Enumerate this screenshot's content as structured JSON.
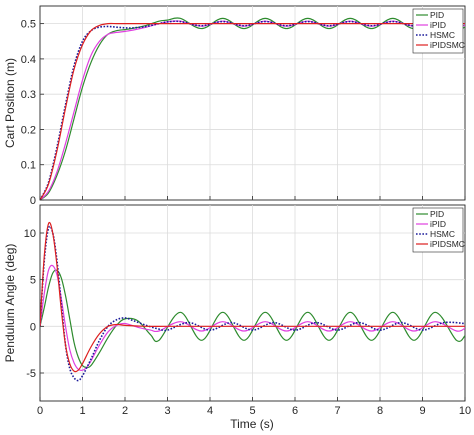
{
  "colors": {
    "PID": "#2e8b2e",
    "iPID": "#e040e0",
    "HSMC": "#1a1a9a",
    "iPIDSMC": "#dd1f1f"
  },
  "xlabel": "Time (s)",
  "chart_data": [
    {
      "type": "line",
      "ylabel": "Cart Position (m)",
      "xlim": [
        0,
        10
      ],
      "ylim": [
        0,
        0.55
      ],
      "xticks": [
        "0",
        "1",
        "2",
        "3",
        "4",
        "5",
        "6",
        "7",
        "8",
        "9",
        "10"
      ],
      "yticks": [
        "0",
        "0.1",
        "0.2",
        "0.3",
        "0.4",
        "0.5"
      ],
      "grid": true,
      "legend": "top-right",
      "series": [
        {
          "name": "PID",
          "style": "solid",
          "x": [
            0,
            0.2,
            0.4,
            0.6,
            0.8,
            1.0,
            1.2,
            1.4,
            1.6,
            1.8,
            2.0,
            2.2,
            2.5,
            2.8,
            3.0,
            3.3,
            3.8,
            4.3,
            4.8,
            5.3,
            5.8,
            6.3,
            6.8,
            7.3,
            7.8,
            8.3,
            8.8,
            9.3,
            9.8,
            10.0
          ],
          "y": [
            0,
            0.02,
            0.07,
            0.14,
            0.23,
            0.32,
            0.39,
            0.44,
            0.47,
            0.48,
            0.483,
            0.487,
            0.495,
            0.507,
            0.51,
            0.515,
            0.486,
            0.515,
            0.486,
            0.515,
            0.486,
            0.515,
            0.486,
            0.515,
            0.486,
            0.515,
            0.486,
            0.515,
            0.486,
            0.49
          ]
        },
        {
          "name": "iPID",
          "style": "solid",
          "x": [
            0,
            0.2,
            0.4,
            0.6,
            0.8,
            1.0,
            1.2,
            1.4,
            1.6,
            1.8,
            2.0,
            2.2,
            2.5,
            2.8,
            3.0,
            3.3,
            3.8,
            4.3,
            4.8,
            5.3,
            5.8,
            6.3,
            6.8,
            7.3,
            7.8,
            8.3,
            8.8,
            9.3,
            9.8,
            10.0
          ],
          "y": [
            0,
            0.025,
            0.08,
            0.16,
            0.25,
            0.34,
            0.41,
            0.45,
            0.47,
            0.475,
            0.478,
            0.482,
            0.49,
            0.5,
            0.505,
            0.507,
            0.493,
            0.507,
            0.493,
            0.507,
            0.493,
            0.507,
            0.493,
            0.507,
            0.493,
            0.507,
            0.493,
            0.507,
            0.493,
            0.495
          ]
        },
        {
          "name": "HSMC",
          "style": "dotted",
          "x": [
            0,
            0.2,
            0.4,
            0.6,
            0.8,
            1.0,
            1.2,
            1.4,
            1.6,
            1.8,
            2.0,
            2.2,
            2.5,
            2.8,
            3.0,
            3.3,
            3.8,
            4.3,
            4.8,
            5.3,
            5.8,
            6.3,
            6.8,
            7.3,
            7.8,
            8.3,
            8.8,
            9.3,
            9.8,
            10.0
          ],
          "y": [
            0,
            0.05,
            0.15,
            0.27,
            0.38,
            0.45,
            0.48,
            0.49,
            0.492,
            0.49,
            0.488,
            0.488,
            0.492,
            0.5,
            0.505,
            0.506,
            0.494,
            0.506,
            0.494,
            0.506,
            0.494,
            0.506,
            0.494,
            0.506,
            0.494,
            0.506,
            0.494,
            0.506,
            0.494,
            0.497
          ]
        },
        {
          "name": "iPIDSMC",
          "style": "solid",
          "x": [
            0,
            0.2,
            0.4,
            0.6,
            0.8,
            1.0,
            1.2,
            1.4,
            1.6,
            1.8,
            2.0,
            2.2,
            2.5,
            2.8,
            3.0,
            3.5,
            4.0,
            5.0,
            6.0,
            7.0,
            8.0,
            9.0,
            10.0
          ],
          "y": [
            0,
            0.045,
            0.14,
            0.26,
            0.37,
            0.44,
            0.48,
            0.495,
            0.5,
            0.5,
            0.5,
            0.5,
            0.5,
            0.5,
            0.5,
            0.5,
            0.5,
            0.5,
            0.5,
            0.5,
            0.5,
            0.5,
            0.5
          ]
        }
      ]
    },
    {
      "type": "line",
      "ylabel": "Pendulum Angle (deg)",
      "xlabel": "Time (s)",
      "xlim": [
        0,
        10
      ],
      "ylim": [
        -8,
        13
      ],
      "xticks": [
        "0",
        "1",
        "2",
        "3",
        "4",
        "5",
        "6",
        "7",
        "8",
        "9",
        "10"
      ],
      "yticks": [
        "-5",
        "0",
        "5",
        "10"
      ],
      "grid": true,
      "legend": "top-right",
      "series": [
        {
          "name": "PID",
          "style": "solid",
          "x": [
            0,
            0.1,
            0.2,
            0.3,
            0.4,
            0.5,
            0.6,
            0.7,
            0.8,
            0.9,
            1.0,
            1.1,
            1.2,
            1.4,
            1.6,
            1.8,
            2.0,
            2.3,
            2.6,
            2.8,
            3.3,
            3.8,
            4.3,
            4.8,
            5.3,
            5.8,
            6.3,
            6.8,
            7.3,
            7.8,
            8.3,
            8.8,
            9.3,
            9.8,
            10.0
          ],
          "y": [
            0,
            2.0,
            4.2,
            5.7,
            6.0,
            5.2,
            3.3,
            0.8,
            -1.7,
            -3.3,
            -4.2,
            -4.4,
            -4.2,
            -2.8,
            -1.2,
            0.1,
            0.8,
            0.6,
            -0.9,
            -1.5,
            1.5,
            -1.5,
            1.5,
            -1.5,
            1.5,
            -1.5,
            1.5,
            -1.5,
            1.5,
            -1.5,
            1.5,
            -1.5,
            1.5,
            -1.5,
            -1.0
          ]
        },
        {
          "name": "iPID",
          "style": "solid",
          "x": [
            0,
            0.1,
            0.2,
            0.3,
            0.4,
            0.5,
            0.6,
            0.7,
            0.8,
            0.9,
            1.0,
            1.1,
            1.2,
            1.4,
            1.6,
            1.8,
            2.0,
            2.3,
            2.6,
            2.8,
            3.3,
            3.8,
            4.3,
            4.8,
            5.3,
            5.8,
            6.3,
            6.8,
            7.3,
            7.8,
            8.3,
            8.8,
            9.3,
            9.8,
            10.0
          ],
          "y": [
            0,
            3.5,
            6.0,
            6.5,
            5.5,
            3.0,
            0.0,
            -2.5,
            -3.9,
            -4.6,
            -4.7,
            -4.4,
            -3.7,
            -2.0,
            -0.6,
            0.1,
            0.3,
            -0.1,
            -0.4,
            -0.5,
            0.5,
            -0.5,
            0.5,
            -0.5,
            0.5,
            -0.5,
            0.5,
            -0.5,
            0.5,
            -0.5,
            0.5,
            -0.5,
            0.5,
            -0.5,
            -0.2
          ]
        },
        {
          "name": "HSMC",
          "style": "dotted",
          "x": [
            0,
            0.1,
            0.2,
            0.3,
            0.4,
            0.5,
            0.6,
            0.7,
            0.8,
            0.9,
            1.0,
            1.2,
            1.4,
            1.6,
            1.8,
            2.0,
            2.2,
            2.5,
            2.8,
            3.0,
            3.5,
            4.0,
            4.5,
            5.0,
            5.5,
            6.0,
            6.5,
            7.0,
            7.5,
            8.0,
            8.5,
            9.0,
            9.5,
            10.0
          ],
          "y": [
            0,
            7.0,
            10.5,
            10.0,
            7.0,
            2.5,
            -2.0,
            -4.5,
            -5.5,
            -5.8,
            -5.3,
            -3.5,
            -1.5,
            0.0,
            0.7,
            0.9,
            0.6,
            0.1,
            -0.3,
            -0.4,
            0.4,
            -0.4,
            0.4,
            -0.4,
            0.4,
            -0.4,
            0.4,
            -0.4,
            0.4,
            -0.4,
            0.4,
            -0.4,
            0.4,
            0.3
          ]
        },
        {
          "name": "iPIDSMC",
          "style": "solid",
          "x": [
            0,
            0.1,
            0.2,
            0.3,
            0.4,
            0.5,
            0.6,
            0.7,
            0.8,
            0.9,
            1.0,
            1.2,
            1.4,
            1.6,
            1.8,
            2.0,
            2.5,
            3.0,
            4.0,
            5.0,
            6.0,
            7.0,
            8.0,
            9.0,
            10.0
          ],
          "y": [
            0,
            7.5,
            11.0,
            10.0,
            6.5,
            1.8,
            -2.0,
            -4.0,
            -4.8,
            -4.7,
            -4.0,
            -2.2,
            -0.8,
            0.0,
            0.2,
            0.1,
            0.0,
            0.0,
            0.0,
            0.0,
            0.0,
            0.0,
            0.0,
            0.0,
            0.0
          ]
        }
      ]
    }
  ]
}
